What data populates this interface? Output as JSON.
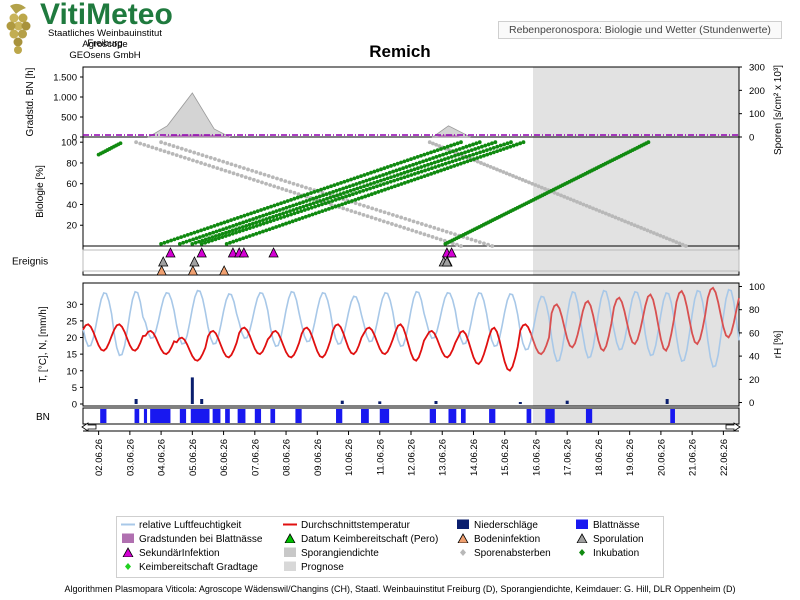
{
  "logo": {
    "name": "VitiMeteo"
  },
  "institution": [
    "Staatliches Weinbauinstitut Freiburg",
    "Agroscope",
    "GEOsens GmbH"
  ],
  "header_note": "Rebenperonospora: Biologie und Wetter (Stundenwerte)",
  "footer": "Algorithmen Plasmopara Viticola: Agroscope Wädenswil/Changins (CH), Staatl. Weinbauinstitut Freiburg (D), Sporangiendichte, Keimdauer: G. Hill, DLR Oppenheim (D)",
  "colors": {
    "humidity": "#a8c8e8",
    "temperature": "#e01010",
    "rain": "#0a1e6e",
    "leaf_wetness": "#1818f0",
    "degree_hours": "#b070b0",
    "germination": "#00c000",
    "secondary": "#d400d4",
    "soil": "#f0a070",
    "sporulation": "#a0a0a0",
    "spore_density": "#c8c8c8",
    "spore_death": "#b8b8b8",
    "incubation": "#108a10",
    "keimbereit": "#20d020",
    "forecast_bg": "#e2e2e2"
  },
  "chart_data": {
    "type": "line",
    "title": "Remich",
    "dates": [
      "02.06.26",
      "03.06.26",
      "04.06.26",
      "05.06.26",
      "06.06.26",
      "07.06.26",
      "08.06.26",
      "09.06.26",
      "10.06.26",
      "11.06.26",
      "12.06.26",
      "13.06.26",
      "14.06.26",
      "15.06.26",
      "16.06.26",
      "17.06.26",
      "18.06.26",
      "19.06.26",
      "20.06.26",
      "21.06.26",
      "22.06.26"
    ],
    "x_range": [
      "01.06.26 12:00",
      "22.06.26 12:00"
    ],
    "forecast_start": "15.06.26 12:00",
    "panel_degree_hours": {
      "ylabel": "Gradstd. BN [h]",
      "ylabel_right": "Sporen [s/cm² x 10³]",
      "ylim": [
        0,
        1750
      ],
      "yticks": [
        0,
        500,
        "1.000",
        "1.500"
      ],
      "ylim_right": [
        0,
        300
      ],
      "yticks_right": [
        0,
        100,
        200,
        300
      ],
      "spore_density_peaks": [
        {
          "x": [
            2.6,
            3.2,
            4.0,
            4.7,
            5.2
          ],
          "y": [
            0,
            280,
            1100,
            200,
            0
          ]
        },
        {
          "x": [
            11.7,
            12.2,
            12.9
          ],
          "y": [
            0,
            280,
            0
          ]
        }
      ]
    },
    "panel_biology": {
      "ylabel": "Biologie [%]",
      "ylim": [
        0,
        105
      ],
      "yticks": [
        20,
        40,
        60,
        80,
        100
      ],
      "incubation_series": [
        {
          "start": 3.0,
          "end": 12.6
        },
        {
          "start": 3.6,
          "end": 13.2
        },
        {
          "start": 4.0,
          "end": 13.7
        },
        {
          "start": 4.3,
          "end": 14.2
        },
        {
          "start": 5.1,
          "end": 14.6
        },
        {
          "start": 12.1,
          "end": 18.6
        }
      ],
      "early_incubation": {
        "x": [
          0.0,
          0.7
        ],
        "y": [
          88,
          99
        ]
      },
      "spore_death_series": [
        {
          "start": 2.2,
          "end": 12.6
        },
        {
          "start": 3.0,
          "end": 13.6
        },
        {
          "start": 11.6,
          "end": 19.8
        }
      ]
    },
    "panel_events": {
      "label": "Ereignis",
      "secondary_infections": [
        3.3,
        4.3,
        5.3,
        5.5,
        5.65,
        6.6,
        12.15,
        12.3
      ],
      "sporulation": [
        3.1,
        4.1,
        12.2
      ],
      "soil_infection": [
        3.05,
        4.05,
        5.05
      ],
      "germination_readiness": [
        12.05,
        12.15
      ]
    },
    "panel_weather": {
      "ylabel": "T, [°C], N, [mm/h]",
      "ylim": [
        0,
        37
      ],
      "yticks": [
        0,
        5,
        10,
        15,
        20,
        25,
        30
      ],
      "ylabel_right": "rH [%]",
      "ylim_right": [
        -3,
        103
      ],
      "yticks_right": [
        0,
        20,
        40,
        60,
        80,
        100
      ],
      "temp_daily": {
        "min": [
          16,
          16,
          15,
          13,
          14,
          15,
          14,
          14,
          15,
          15,
          13,
          14,
          12,
          10,
          15,
          17,
          16,
          18,
          16,
          18,
          20
        ],
        "max": [
          24,
          24,
          22,
          20,
          22,
          23,
          22,
          23,
          24,
          23,
          24,
          22,
          22,
          23,
          24,
          30,
          31,
          32,
          33,
          34,
          35
        ]
      },
      "rh_daily": {
        "min": [
          48,
          40,
          55,
          50,
          50,
          55,
          48,
          52,
          50,
          52,
          48,
          55,
          50,
          48,
          45,
          35,
          38,
          45,
          40,
          35,
          30
        ],
        "max": [
          95,
          96,
          95,
          97,
          94,
          95,
          96,
          95,
          92,
          95,
          96,
          95,
          95,
          94,
          92,
          96,
          97,
          96,
          95,
          97,
          98
        ]
      },
      "rain_events": [
        {
          "x": 2.2,
          "y": 1.5
        },
        {
          "x": 4.0,
          "y": 8.0
        },
        {
          "x": 4.3,
          "y": 1.5
        },
        {
          "x": 8.8,
          "y": 1.0
        },
        {
          "x": 10.0,
          "y": 0.8
        },
        {
          "x": 11.8,
          "y": 0.9
        },
        {
          "x": 14.5,
          "y": 0.6
        },
        {
          "x": 16.0,
          "y": 1.0
        },
        {
          "x": 19.2,
          "y": 1.5
        }
      ]
    },
    "panel_leaf_wetness": {
      "label": "BN",
      "intervals": [
        [
          0.05,
          0.25
        ],
        [
          1.15,
          1.3
        ],
        [
          1.45,
          1.55
        ],
        [
          1.65,
          2.3
        ],
        [
          2.6,
          2.8
        ],
        [
          2.95,
          3.55
        ],
        [
          3.65,
          3.9
        ],
        [
          4.05,
          4.2
        ],
        [
          4.45,
          4.7
        ],
        [
          5.0,
          5.2
        ],
        [
          5.5,
          5.65
        ],
        [
          6.3,
          6.5
        ],
        [
          7.6,
          7.8
        ],
        [
          8.4,
          8.65
        ],
        [
          9.0,
          9.3
        ],
        [
          10.6,
          10.8
        ],
        [
          11.2,
          11.45
        ],
        [
          11.6,
          11.75
        ],
        [
          12.5,
          12.7
        ],
        [
          13.7,
          13.85
        ],
        [
          14.3,
          14.6
        ],
        [
          15.6,
          15.8
        ],
        [
          18.3,
          18.45
        ]
      ]
    },
    "legend": [
      {
        "key": "humidity",
        "label": "relative Luftfeuchtigkeit"
      },
      {
        "key": "temperature",
        "label": "Durchschnittstemperatur"
      },
      {
        "key": "rain",
        "label": "Niederschläge"
      },
      {
        "key": "leaf_wetness",
        "label": "Blattnässe"
      },
      {
        "key": "degree_hours",
        "label": "Gradstunden bei Blattnässe"
      },
      {
        "key": "germination",
        "label": "Datum Keimbereitschaft (Pero)"
      },
      {
        "key": "soil",
        "label": "Bodeninfektion"
      },
      {
        "key": "sporulation",
        "label": "Sporulation"
      },
      {
        "key": "secondary",
        "label": "SekundärInfektion"
      },
      {
        "key": "spore_density",
        "label": "Sporangiendichte"
      },
      {
        "key": "spore_death",
        "label": "Sporenabsterben"
      },
      {
        "key": "incubation",
        "label": "Inkubation"
      },
      {
        "key": "keimbereit",
        "label": "Keimbereitschaft Gradtage"
      },
      {
        "key": "forecast",
        "label": "Prognose"
      }
    ]
  }
}
